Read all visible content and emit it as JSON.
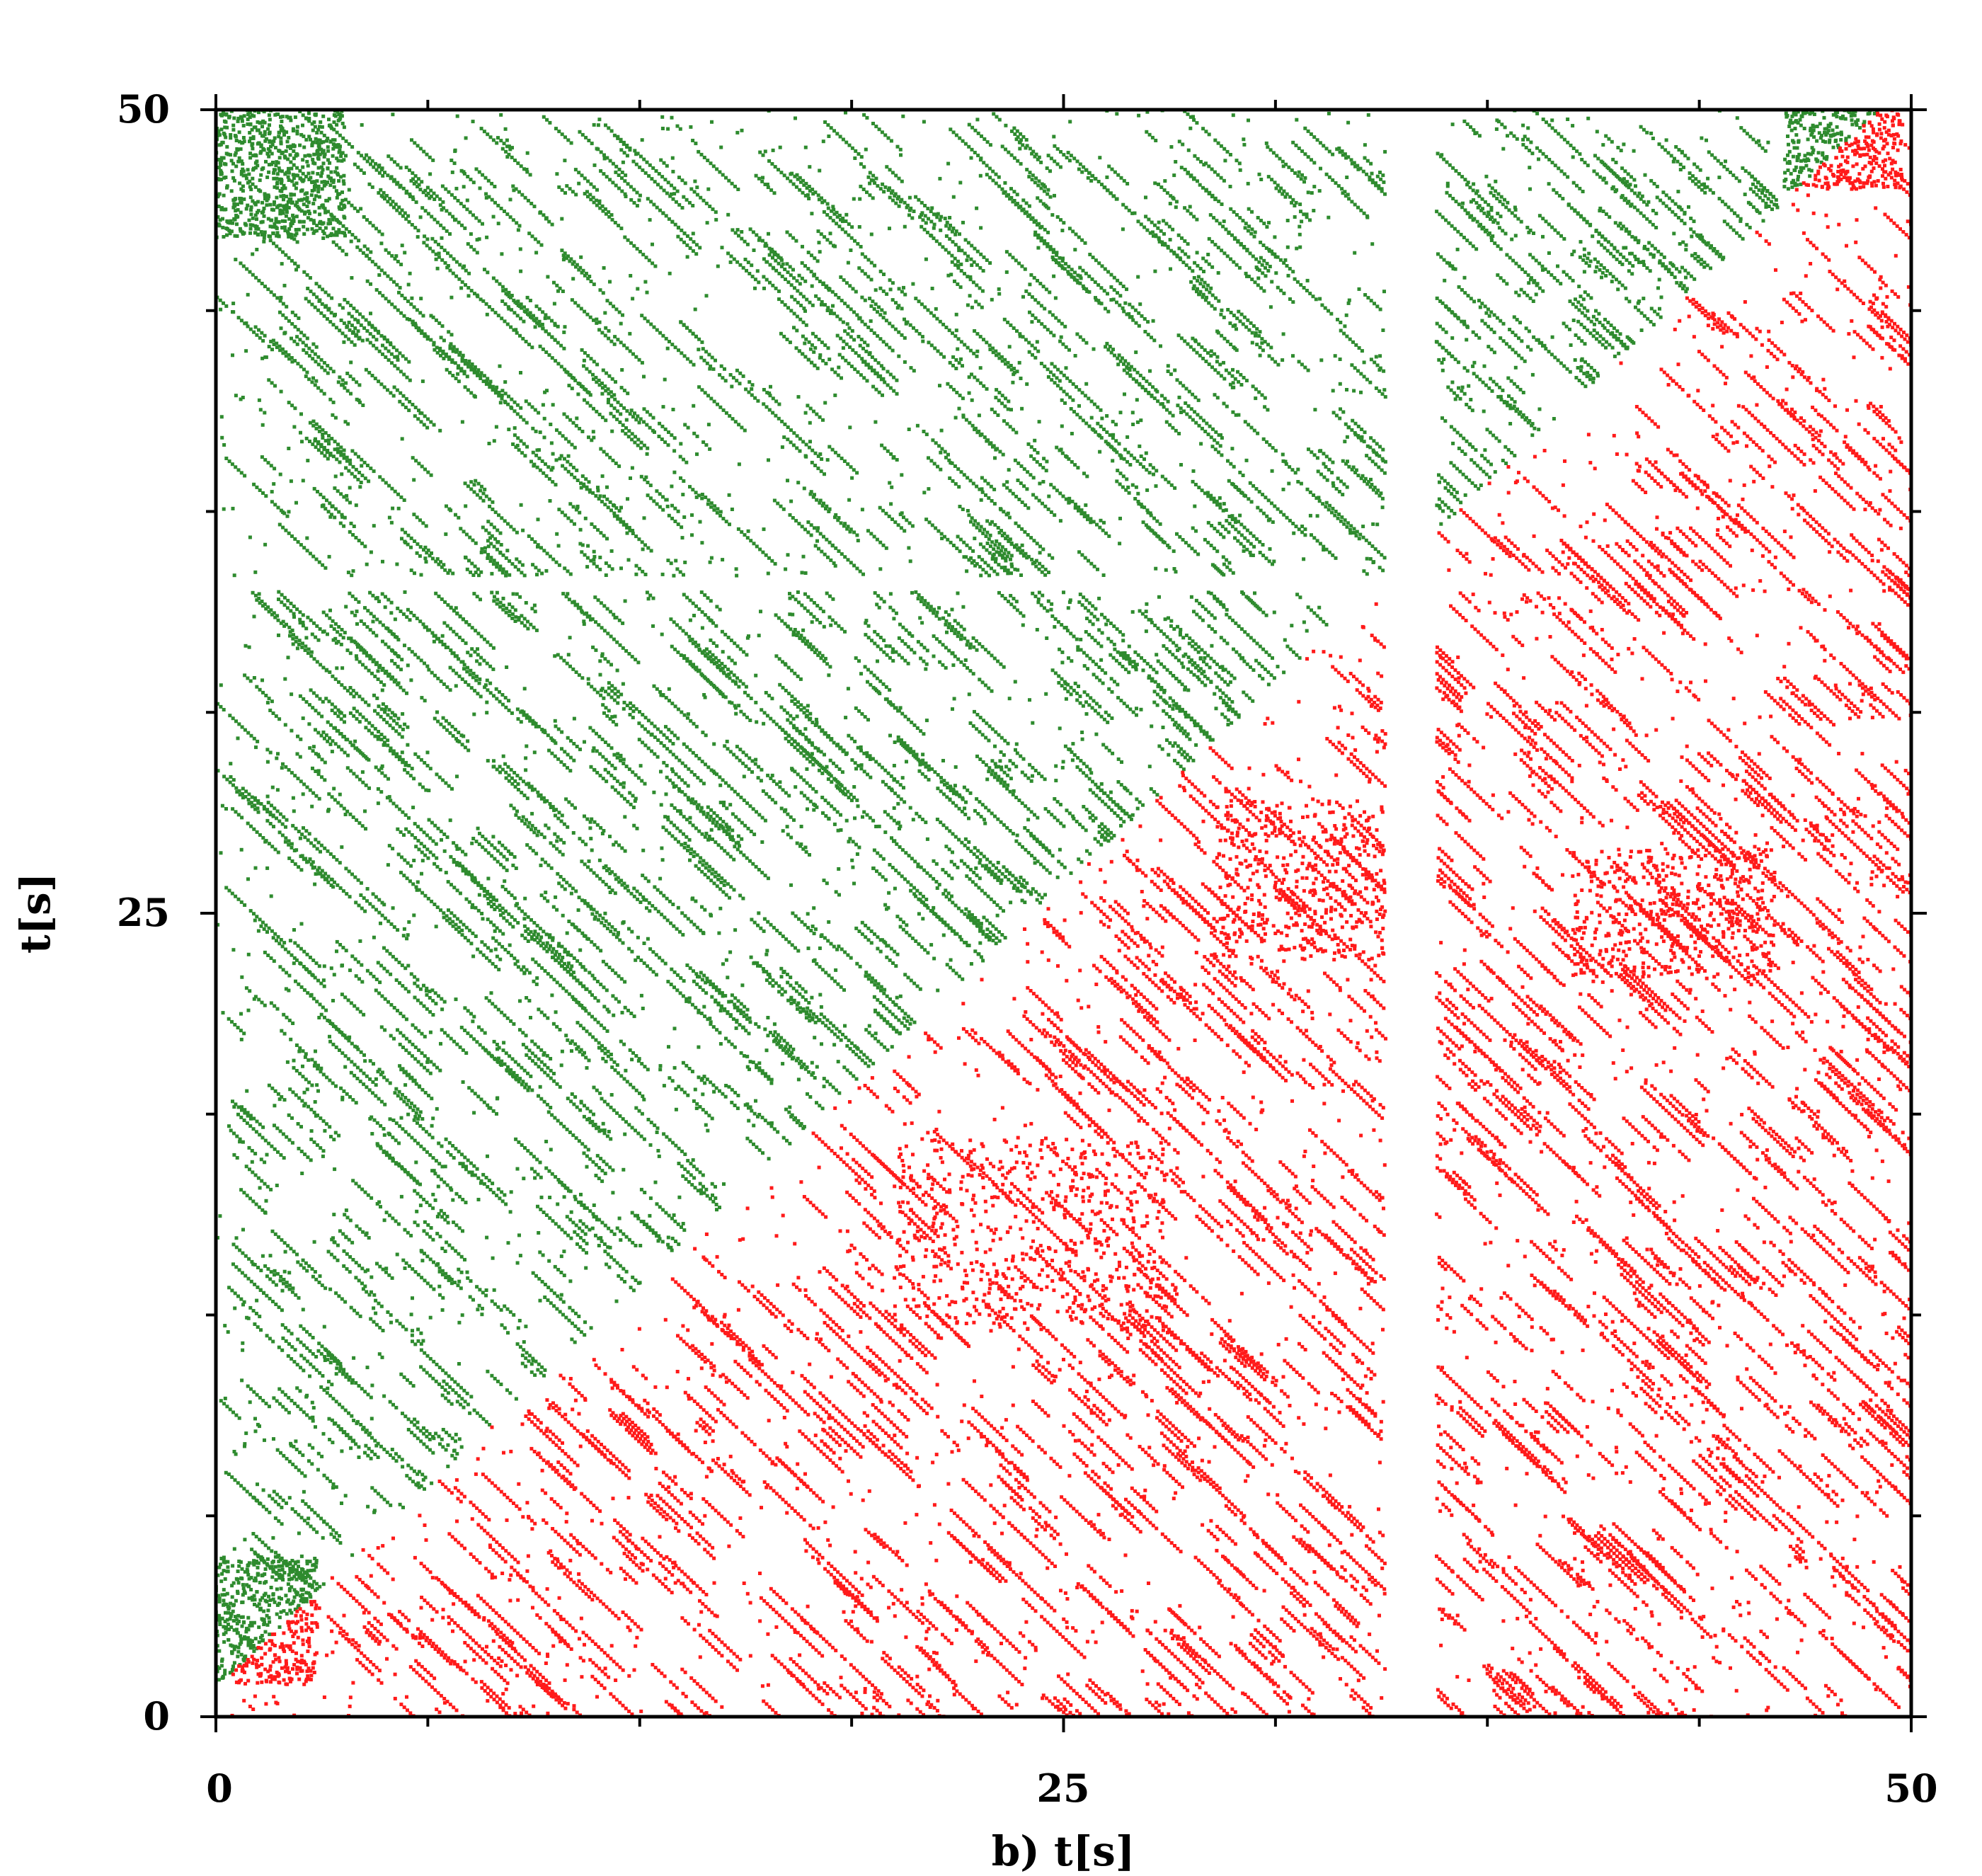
{
  "chart_data": {
    "type": "scatter",
    "title": "",
    "xlabel": "b) t[s]",
    "ylabel": "t[s]",
    "xlim": [
      0,
      50
    ],
    "ylim": [
      0,
      50
    ],
    "x_tick_labels": [
      "0",
      "25",
      "50"
    ],
    "y_tick_labels": [
      "0",
      "25",
      "50"
    ],
    "x_ticks": [
      0,
      25,
      50
    ],
    "y_ticks": [
      0,
      25,
      50
    ],
    "minor_ticks": [
      6.25,
      12.5,
      18.75,
      31.25,
      37.5,
      43.75
    ],
    "grid": false,
    "legend": "none",
    "description": "Recurrence plot: green points above the diagonal (upper-left triangle), red points below (lower-right triangle), with diagonal line structures and blank bands (e.g. near x≈34.5–36).",
    "series": [
      {
        "name": "",
        "color": "#2e8b2e",
        "region": "upper-left"
      },
      {
        "name": "",
        "color": "#ff1a1a",
        "region": "lower-right"
      }
    ],
    "blank_bands_x": [
      [
        34.5,
        36.0
      ]
    ],
    "blank_bands_y": [
      [
        35.0,
        35.5
      ]
    ],
    "diagonal_split_offset": 0.9
  }
}
